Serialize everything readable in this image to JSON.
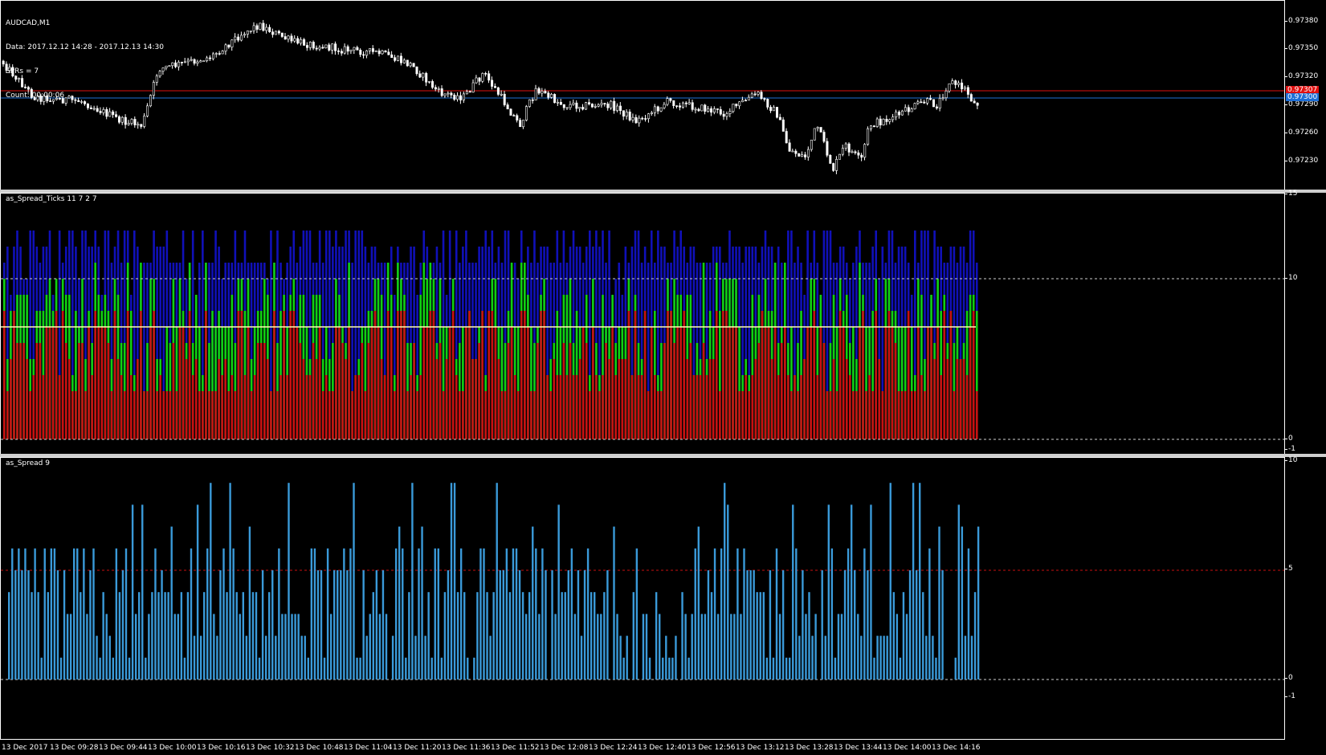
{
  "main": {
    "symbol": "AUDCAD,M1",
    "info_lines": [
      "Data: 2017.12.12 14:28 - 2017.12.13 14:30",
      "SPRs = 7",
      "Count: 00:00:06"
    ],
    "y_ticks": [
      "0.97380",
      "0.97350",
      "0.97320",
      "0.97290",
      "0.97260",
      "0.97230"
    ],
    "bid_tag": "0.97300",
    "ask_tag": "0.97307",
    "colors": {
      "candle": "#ffffff",
      "bid_line": "#1e6fd6",
      "ask_line": "#e01010"
    }
  },
  "spread_ticks": {
    "title": "as_Spread_Ticks 11 7 2 7",
    "y_ticks": [
      "15",
      "10",
      "0",
      "-1"
    ],
    "colors": {
      "blue": "#1010b8",
      "green": "#10d010",
      "red": "#c81010",
      "level": "#ffffb0"
    }
  },
  "spread": {
    "title": "as_Spread 9",
    "y_ticks": [
      "10",
      "5",
      "0",
      "-1"
    ],
    "colors": {
      "bar": "#3a9ad9",
      "level": "#c81010"
    }
  },
  "x_axis": {
    "labels": [
      "13 Dec 2017",
      "13 Dec 09:28",
      "13 Dec 09:44",
      "13 Dec 10:00",
      "13 Dec 10:16",
      "13 Dec 10:32",
      "13 Dec 10:48",
      "13 Dec 11:04",
      "13 Dec 11:20",
      "13 Dec 11:36",
      "13 Dec 11:52",
      "13 Dec 12:08",
      "13 Dec 12:24",
      "13 Dec 12:40",
      "13 Dec 12:56",
      "13 Dec 13:12",
      "13 Dec 13:28",
      "13 Dec 13:44",
      "13 Dec 14:00",
      "13 Dec 14:16"
    ]
  }
}
